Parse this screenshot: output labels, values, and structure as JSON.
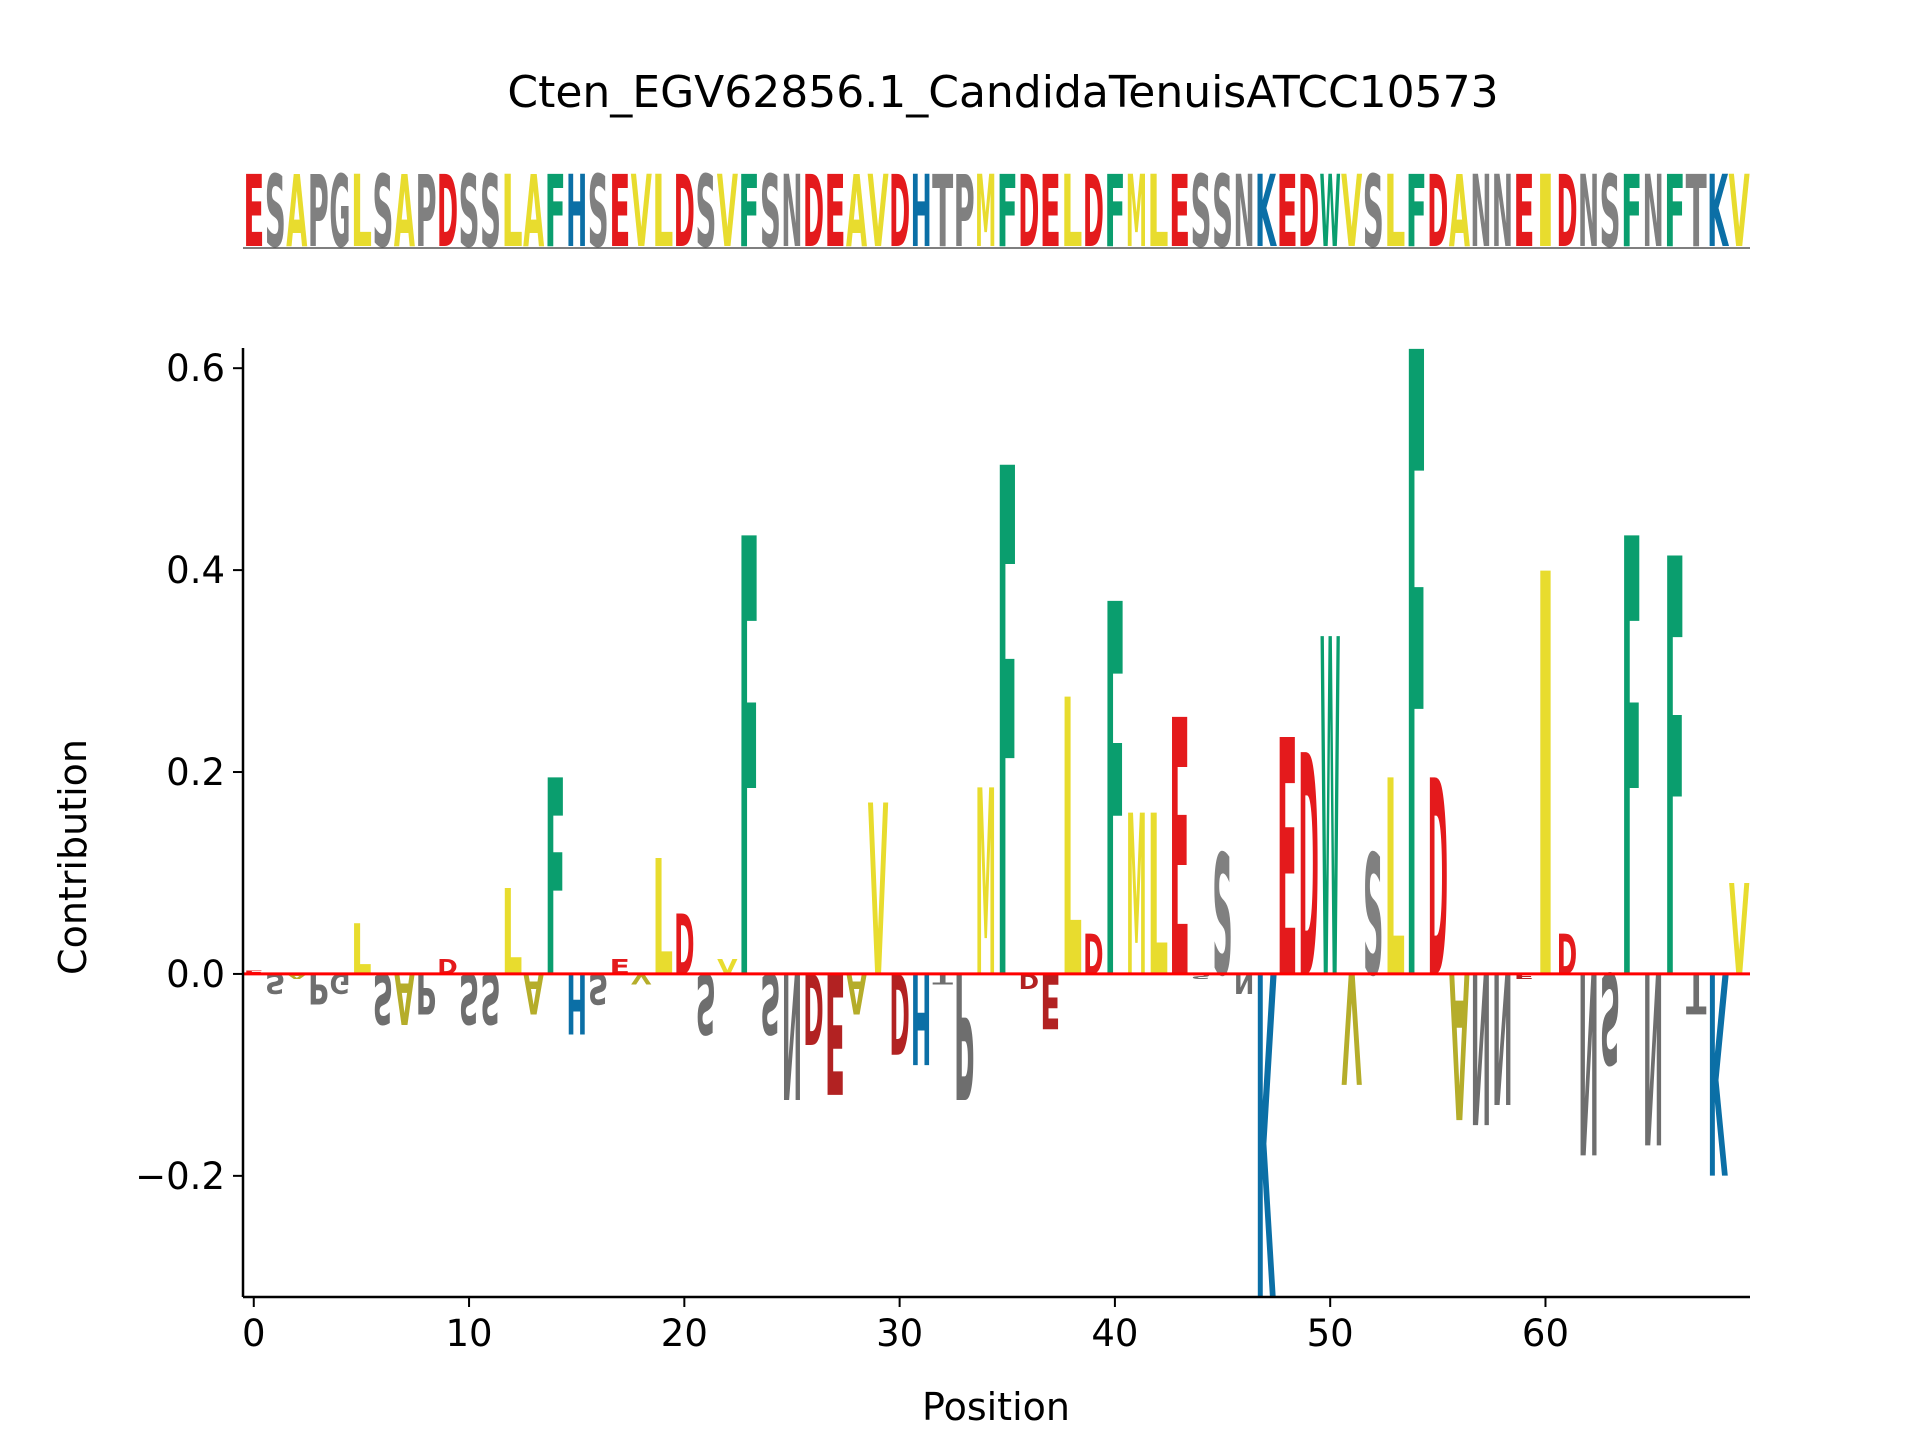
{
  "chart_data": {
    "type": "sequence-logo",
    "title": "Cten_EGV62856.1_CandidaTenuisATCC10573",
    "sequence": "ESAPGLSAPDSSLAFHSEVLDSVFSNDEAVDHTPMFDELDFMLESSNKEDWVSLFDANNEIDNSFNFTKV",
    "xlabel": "Position",
    "ylabel": "Contribution",
    "xlim": [
      -0.5,
      69.5
    ],
    "ylim": [
      -0.32,
      0.62
    ],
    "xticks": [
      0,
      10,
      20,
      30,
      40,
      50,
      60
    ],
    "yticks": [
      -0.2,
      0.0,
      0.2,
      0.4,
      0.6
    ],
    "ytick_labels": [
      "−0.2",
      "0.0",
      "0.2",
      "0.4",
      "0.6"
    ],
    "zero_line_color": "#ff0000",
    "residue_colors": {
      "acidic": "#e41a1c",
      "basic": "#0b6fa6",
      "aromatic": "#0a9e6e",
      "hydrophobic": "#e8dc2e",
      "polar": "#808080"
    },
    "contributions": [
      0.003,
      -0.02,
      -0.005,
      -0.03,
      -0.02,
      0.05,
      -0.05,
      -0.05,
      -0.04,
      0.015,
      -0.05,
      -0.05,
      0.085,
      -0.04,
      0.195,
      -0.06,
      -0.03,
      0.015,
      -0.01,
      0.115,
      0.06,
      -0.06,
      0.015,
      0.435,
      -0.06,
      -0.125,
      -0.07,
      -0.12,
      -0.04,
      0.17,
      -0.08,
      -0.09,
      -0.01,
      -0.125,
      0.185,
      0.505,
      -0.015,
      -0.055,
      0.275,
      0.04,
      0.37,
      0.16,
      0.16,
      0.255,
      -0.005,
      0.12,
      -0.02,
      -0.32,
      0.235,
      0.22,
      0.335,
      -0.11,
      0.12,
      0.195,
      0.62,
      0.195,
      -0.145,
      -0.15,
      -0.13,
      -0.005,
      0.4,
      0.04,
      -0.18,
      -0.09,
      0.435,
      -0.17,
      0.415,
      -0.04,
      -0.2,
      0.09
    ]
  }
}
